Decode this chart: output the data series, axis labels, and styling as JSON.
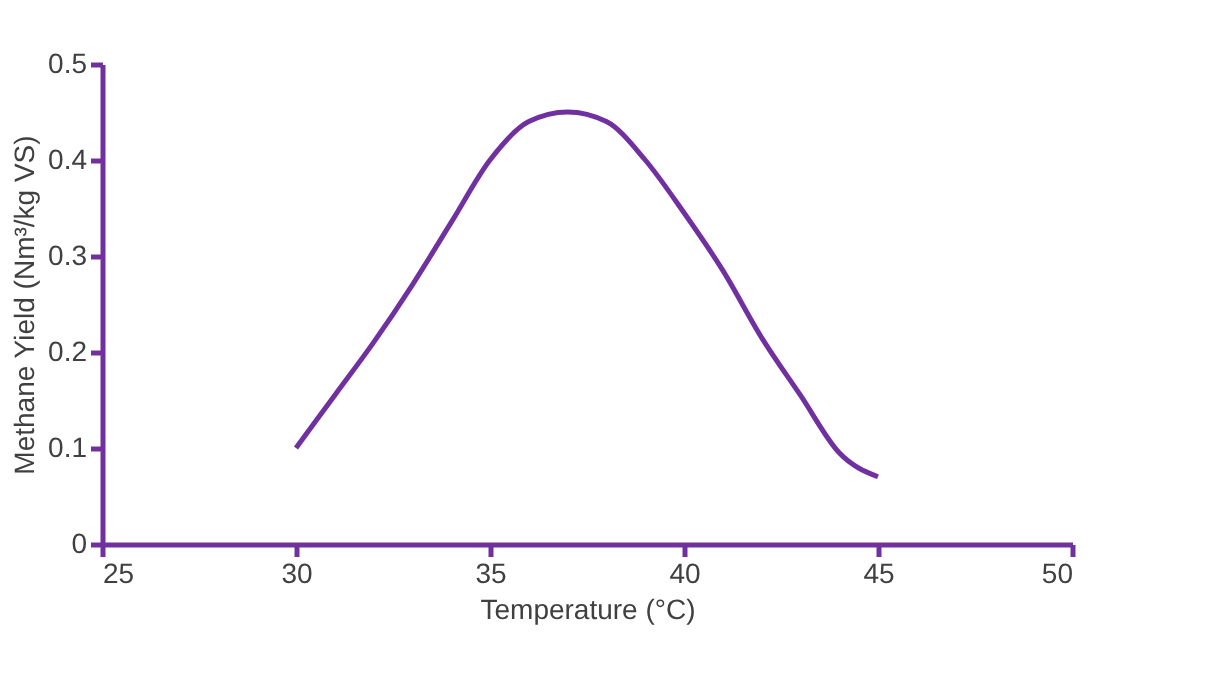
{
  "chart_data": {
    "type": "line",
    "xlabel": "Temperature (°C)",
    "ylabel": "Methane Yield (Nm³/kg VS)",
    "x": [
      30,
      31,
      32,
      33,
      34,
      35,
      36,
      37,
      38,
      39,
      40,
      41,
      42,
      43,
      44,
      45
    ],
    "series": [
      {
        "color": "#7030a0",
        "values": [
          0.1,
          0.155,
          0.21,
          0.27,
          0.335,
          0.4,
          0.44,
          0.45,
          0.44,
          0.4,
          0.345,
          0.285,
          0.215,
          0.155,
          0.095,
          0.07
        ]
      }
    ],
    "xlim": [
      25,
      50
    ],
    "xticks": [
      25,
      30,
      35,
      40,
      45,
      50
    ],
    "ylim": [
      0,
      0.5
    ],
    "yticks": [
      0,
      0.1,
      0.2,
      0.3,
      0.4,
      0.5
    ],
    "grid": false,
    "marker": "none",
    "line_style": "solid"
  }
}
